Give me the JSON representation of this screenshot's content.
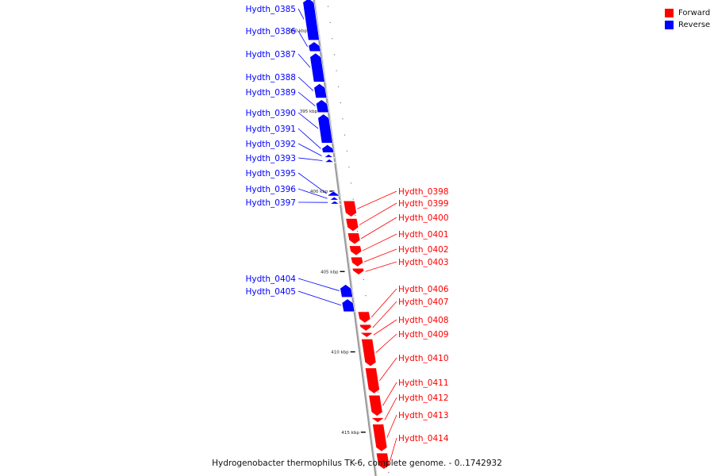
{
  "colors": {
    "forward": "#ff0000",
    "reverse": "#0000ff",
    "backbone": "#999999"
  },
  "legend": [
    {
      "label": "Forward",
      "strand": "forward"
    },
    {
      "label": "Reverse",
      "strand": "reverse"
    }
  ],
  "caption": "Hydrogenobacter thermophilus TK-6, complete genome. - 0..1742932",
  "genes": [
    {
      "label": "Hydth_0385",
      "strand": "reverse",
      "start": 388.0,
      "end": 390.6
    },
    {
      "label": "Hydth_0386",
      "strand": "reverse",
      "start": 390.7,
      "end": 391.3
    },
    {
      "label": "Hydth_0387",
      "strand": "reverse",
      "start": 391.4,
      "end": 393.2
    },
    {
      "label": "Hydth_0388",
      "strand": "reverse",
      "start": 393.3,
      "end": 394.2
    },
    {
      "label": "Hydth_0389",
      "strand": "reverse",
      "start": 394.3,
      "end": 395.1
    },
    {
      "label": "Hydth_0390",
      "strand": "reverse",
      "start": 395.2,
      "end": 397.0
    },
    {
      "label": "Hydth_0391",
      "strand": "reverse",
      "start": 397.1,
      "end": 397.6
    },
    {
      "label": "Hydth_0392",
      "strand": "reverse",
      "start": 397.7,
      "end": 397.9
    },
    {
      "label": "Hydth_0393",
      "strand": "reverse",
      "start": 398.0,
      "end": 398.2
    },
    {
      "label": "Hydth_0395",
      "strand": "reverse",
      "start": 400.0,
      "end": 400.3
    },
    {
      "label": "Hydth_0396",
      "strand": "reverse",
      "start": 400.35,
      "end": 400.55
    },
    {
      "label": "Hydth_0397",
      "strand": "reverse",
      "start": 400.6,
      "end": 400.8
    },
    {
      "label": "Hydth_0398",
      "strand": "forward",
      "start": 400.6,
      "end": 401.6
    },
    {
      "label": "Hydth_0399",
      "strand": "forward",
      "start": 401.7,
      "end": 402.5
    },
    {
      "label": "Hydth_0400",
      "strand": "forward",
      "start": 402.6,
      "end": 403.3
    },
    {
      "label": "Hydth_0401",
      "strand": "forward",
      "start": 403.4,
      "end": 404.0
    },
    {
      "label": "Hydth_0402",
      "strand": "forward",
      "start": 404.1,
      "end": 404.7
    },
    {
      "label": "Hydth_0403",
      "strand": "forward",
      "start": 404.8,
      "end": 405.2
    },
    {
      "label": "Hydth_0404",
      "strand": "reverse",
      "start": 405.8,
      "end": 406.6
    },
    {
      "label": "Hydth_0405",
      "strand": "reverse",
      "start": 406.7,
      "end": 407.5
    },
    {
      "label": "Hydth_0406",
      "strand": "forward",
      "start": 407.5,
      "end": 408.2
    },
    {
      "label": "Hydth_0407",
      "strand": "forward",
      "start": 408.3,
      "end": 408.7
    },
    {
      "label": "Hydth_0408",
      "strand": "forward",
      "start": 408.8,
      "end": 409.1
    },
    {
      "label": "Hydth_0409",
      "strand": "forward",
      "start": 409.2,
      "end": 410.9
    },
    {
      "label": "Hydth_0410",
      "strand": "forward",
      "start": 411.0,
      "end": 412.6
    },
    {
      "label": "Hydth_0411",
      "strand": "forward",
      "start": 412.7,
      "end": 414.0
    },
    {
      "label": "Hydth_0412",
      "strand": "forward",
      "start": 414.1,
      "end": 414.4
    },
    {
      "label": "Hydth_0413",
      "strand": "forward",
      "start": 414.5,
      "end": 416.2
    },
    {
      "label": "Hydth_0414",
      "strand": "forward",
      "start": 416.3,
      "end": 417.3
    }
  ],
  "ticks": [
    {
      "pos": 390,
      "label": "390 kbp"
    },
    {
      "pos": 395,
      "label": "395 kbp"
    },
    {
      "pos": 400,
      "label": "400 kbp"
    },
    {
      "pos": 405,
      "label": "405 kbp"
    },
    {
      "pos": 410,
      "label": "410 kbp"
    },
    {
      "pos": 415,
      "label": "415 kbp"
    }
  ]
}
